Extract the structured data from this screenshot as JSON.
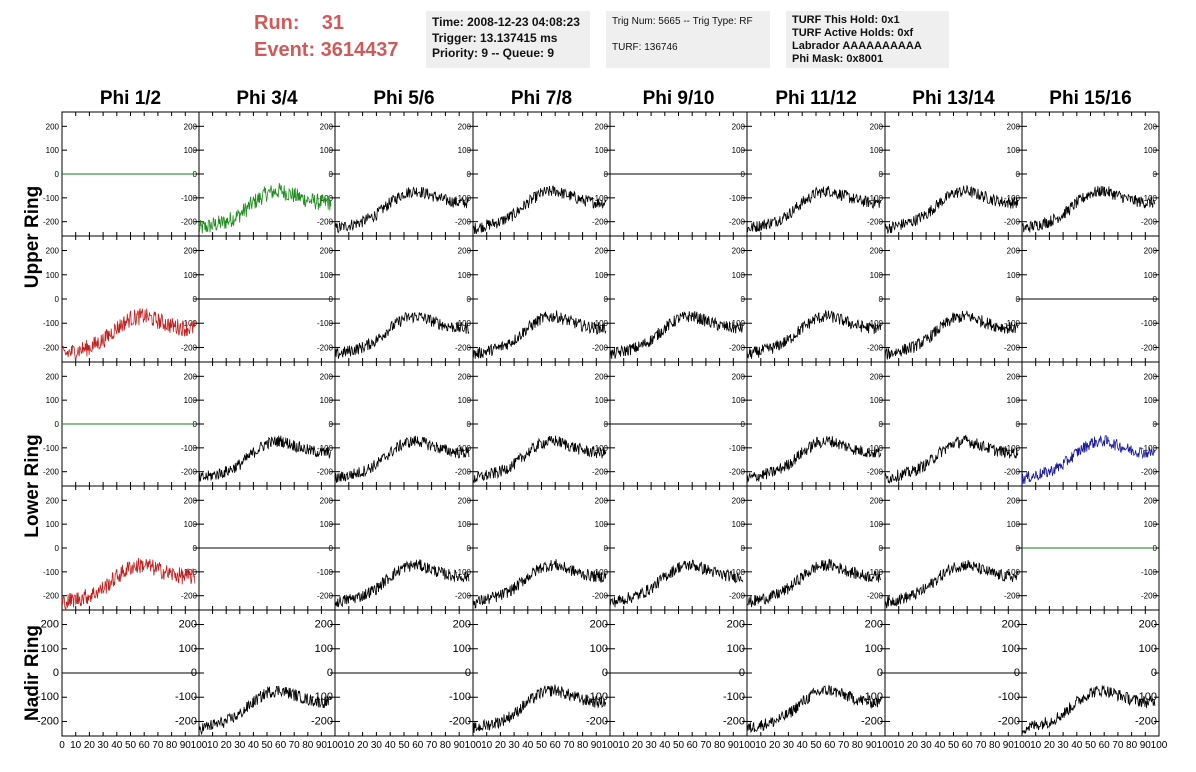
{
  "header": {
    "run_line": "Run:    31",
    "event_line": "Event: 3614437",
    "time_box": [
      "Time: 2008-12-23 04:08:23",
      "Trigger: 13.137415 ms",
      "Priority: 9 -- Queue: 9"
    ],
    "trig_box": [
      "Trig Num: 5665 -- Trig Type: RF",
      "",
      "TURF: 136746"
    ],
    "turf_box": [
      "TURF This Hold: 0x1",
      "TURF Active Holds: 0xf",
      "Labrador AAAAAAAAAA",
      "Phi Mask: 0x8001"
    ]
  },
  "chart_data": {
    "type": "line",
    "column_titles": [
      "Phi 1/2",
      "Phi 3/4",
      "Phi 5/6",
      "Phi 7/8",
      "Phi 9/10",
      "Phi 11/12",
      "Phi 13/14",
      "Phi 15/16"
    ],
    "ring_labels": [
      {
        "text": "Upper Ring",
        "rows": [
          0,
          1
        ]
      },
      {
        "text": "Lower Ring",
        "rows": [
          2,
          3
        ]
      },
      {
        "text": "Nadir Ring",
        "rows": [
          4,
          4
        ]
      }
    ],
    "xlim": [
      0,
      100
    ],
    "ylim": [
      -260,
      260
    ],
    "y_ticks": [
      200,
      100,
      0,
      -100,
      -200
    ],
    "y_tick_labels": [
      "200",
      "100",
      "0",
      "-100",
      "-200"
    ],
    "x_ticks": [
      0,
      10,
      20,
      30,
      40,
      50,
      60,
      70,
      80,
      90,
      100
    ],
    "x_tick_labels": [
      "0",
      "10",
      "20",
      "30",
      "40",
      "50",
      "60",
      "70",
      "80",
      "90",
      "100"
    ],
    "colors": {
      "flat": "#1a7a1a",
      "black": "#000000",
      "green": "#1e8c1e",
      "red": "#c02020",
      "blue": "#1a1a9a"
    },
    "panels": [
      [
        "flat",
        "green",
        "black",
        "black",
        "flatk",
        "black",
        "black",
        "black"
      ],
      [
        "red",
        "flatk",
        "black",
        "black",
        "black",
        "black",
        "black",
        "flatk"
      ],
      [
        "flat",
        "black",
        "black",
        "black",
        "flatk",
        "black",
        "black",
        "blue"
      ],
      [
        "red",
        "flatk",
        "black",
        "black",
        "black",
        "black",
        "black",
        "flat"
      ],
      [
        "flatk",
        "black",
        "flatk",
        "black",
        "flatk",
        "black",
        "flatk",
        "black"
      ]
    ],
    "waveform": {
      "x": [
        0,
        10,
        20,
        30,
        40,
        50,
        60,
        70,
        80,
        90,
        100
      ],
      "y": [
        -230,
        -215,
        -200,
        -170,
        -120,
        -80,
        -70,
        -90,
        -110,
        -120,
        -120
      ],
      "noise": 25
    },
    "flat_value": 0
  }
}
